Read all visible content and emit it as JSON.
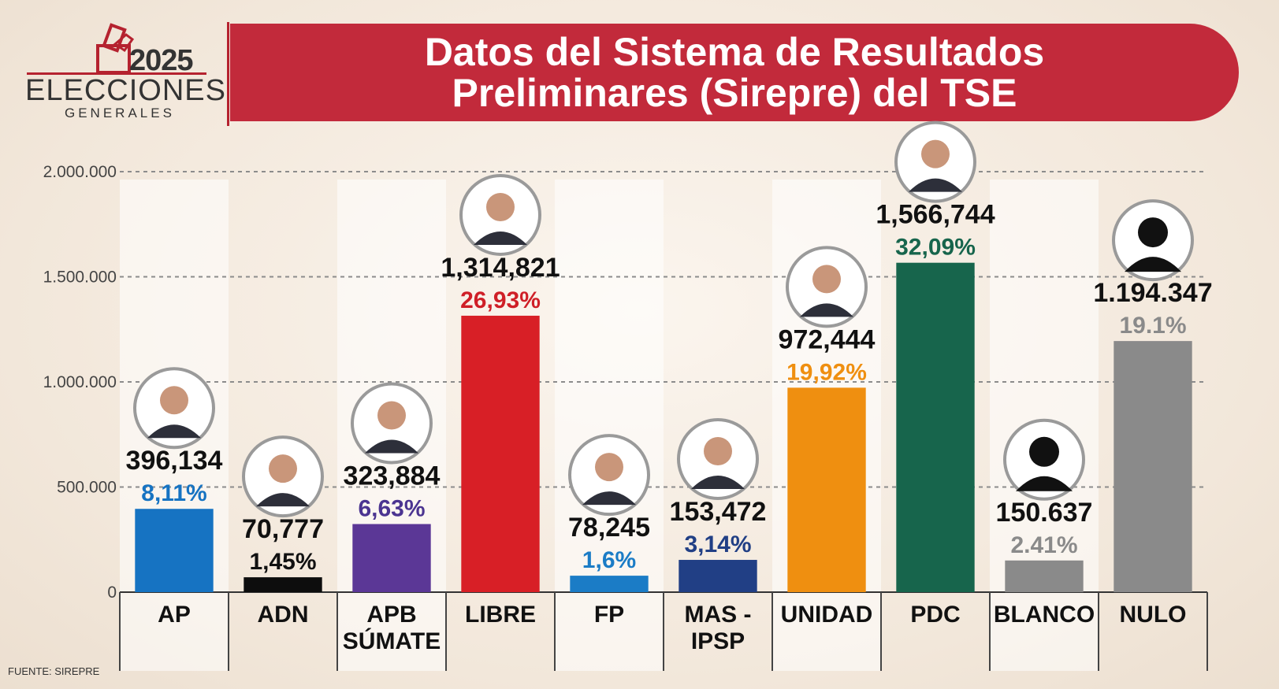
{
  "logo": {
    "year": "2025",
    "line1": "ELECCIONES",
    "line2": "GENERALES"
  },
  "banner": {
    "line1": "Datos del Sistema de Resultados",
    "line2": "Preliminares (Sirepre) del TSE"
  },
  "source": "FUENTE: SIREPRE",
  "chart_data": {
    "type": "bar",
    "title": "Datos del Sistema de Resultados Preliminares (Sirepre) del TSE",
    "ylim": [
      0,
      2000000
    ],
    "yticks": [
      0,
      500000,
      1000000,
      1500000,
      2000000
    ],
    "ytick_labels": [
      "0",
      "500.000",
      "1.000.000",
      "1.500.000",
      "2.000.000"
    ],
    "grid": true,
    "categories": [
      [
        "AP"
      ],
      [
        "ADN"
      ],
      [
        "APB",
        "SÚMATE"
      ],
      [
        "LIBRE"
      ],
      [
        "FP"
      ],
      [
        "MAS -",
        "IPSP"
      ],
      [
        "UNIDAD"
      ],
      [
        "PDC"
      ],
      [
        "BLANCO"
      ],
      [
        "NULO"
      ]
    ],
    "values": [
      396134,
      70777,
      323884,
      1314821,
      78245,
      153472,
      972444,
      1566744,
      150637,
      1194347
    ],
    "value_labels": [
      "396,134",
      "70,777",
      "323,884",
      "1,314,821",
      "78,245",
      "153,472",
      "972,444",
      "1,566,744",
      "150.637",
      "1.194.347"
    ],
    "percent_labels": [
      "8,11%",
      "1,45%",
      "6,63%",
      "26,93%",
      "1,6%",
      "3,14%",
      "19,92%",
      "32,09%",
      "2.41%",
      "19.1%"
    ],
    "bar_colors": [
      "#1673c2",
      "#0d0d0d",
      "#5b3796",
      "#d81f26",
      "#1b7cc6",
      "#213f85",
      "#ef8f10",
      "#17654c",
      "#8a8a8a",
      "#8a8a8a"
    ],
    "percent_colors": [
      "#1673c2",
      "#111111",
      "#4b3491",
      "#cf1f27",
      "#1b7cc6",
      "#213f85",
      "#ef8f10",
      "#17654c",
      "#8a8a8a",
      "#8a8a8a"
    ],
    "avatars": [
      "photo",
      "photo",
      "photo",
      "photo",
      "photo",
      "photo",
      "photo",
      "photo",
      "silhouette",
      "silhouette"
    ]
  }
}
